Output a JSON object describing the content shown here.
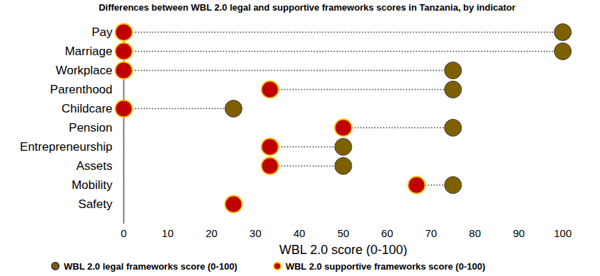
{
  "chart_data": {
    "type": "dumbbell",
    "title": "Differences between WBL 2.0 legal and supportive frameworks scores in Tanzania, by indicator",
    "orientation": "horizontal",
    "categories": [
      "Pay",
      "Marriage",
      "Workplace",
      "Parenthood",
      "Childcare",
      "Pension",
      "Entrepreneurship",
      "Assets",
      "Mobility",
      "Safety"
    ],
    "series": [
      {
        "name": "WBL 2.0 legal frameworks score (0-100)",
        "color": "#7f6000",
        "marker": "circle",
        "values": [
          100,
          100,
          75,
          75,
          25,
          75,
          50,
          50,
          75,
          25
        ]
      },
      {
        "name": "WBL 2.0 supportive frameworks score (0-100)",
        "color": "#c00000",
        "marker": "circle",
        "values": [
          0,
          0,
          0,
          33.3,
          0,
          50,
          33.3,
          33.3,
          66.7,
          25
        ]
      }
    ],
    "x_label": "WBL 2.0 score (0-100)",
    "xlim": [
      0,
      100
    ],
    "xticks": [
      0,
      10,
      20,
      30,
      40,
      50,
      60,
      70,
      80,
      90,
      100
    ],
    "grid": false,
    "legend": "bottom",
    "line_style": "dotted"
  }
}
